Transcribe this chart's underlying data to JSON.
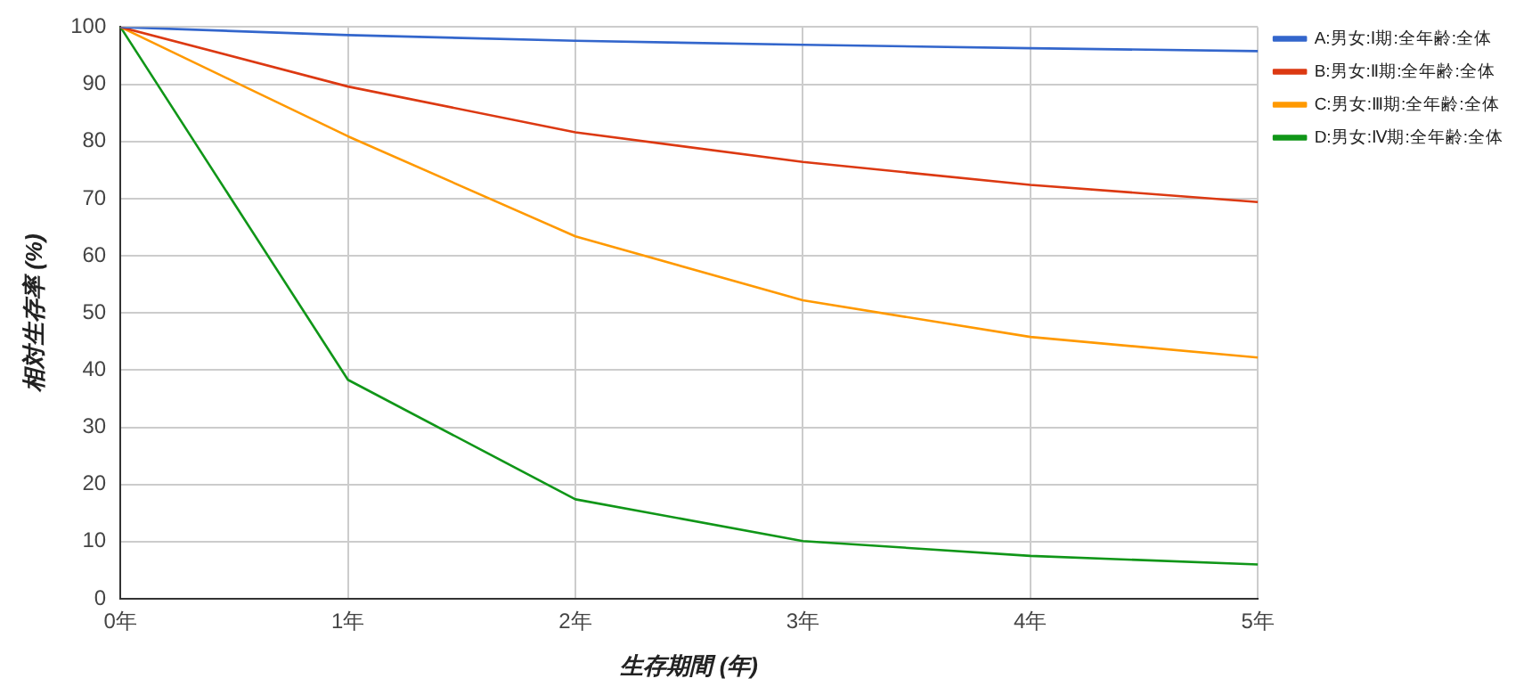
{
  "chart_data": {
    "type": "line",
    "xlabel": "生存期間 (年)",
    "ylabel": "相対生存率 (%)",
    "categories": [
      "0年",
      "1年",
      "2年",
      "3年",
      "4年",
      "5年"
    ],
    "ylim": [
      0,
      100
    ],
    "yticks": [
      0,
      10,
      20,
      30,
      40,
      50,
      60,
      70,
      80,
      90,
      100
    ],
    "grid": true,
    "legend": "top right",
    "marker": "none",
    "line_style": "solid",
    "series": [
      {
        "name": "A:男女:Ⅰ期:全年齢:全体",
        "color": "#3366cc",
        "values": [
          100,
          98.6,
          97.6,
          96.9,
          96.3,
          95.8
        ]
      },
      {
        "name": "B:男女:Ⅱ期:全年齢:全体",
        "color": "#dc3912",
        "values": [
          100,
          89.6,
          81.6,
          76.4,
          72.4,
          69.4
        ]
      },
      {
        "name": "C:男女:Ⅲ期:全年齢:全体",
        "color": "#ff9900",
        "values": [
          100,
          80.9,
          63.4,
          52.2,
          45.8,
          42.2
        ]
      },
      {
        "name": "D:男女:Ⅳ期:全年齢:全体",
        "color": "#109618",
        "values": [
          100,
          38.3,
          17.4,
          10.1,
          7.5,
          6.0
        ]
      }
    ]
  }
}
